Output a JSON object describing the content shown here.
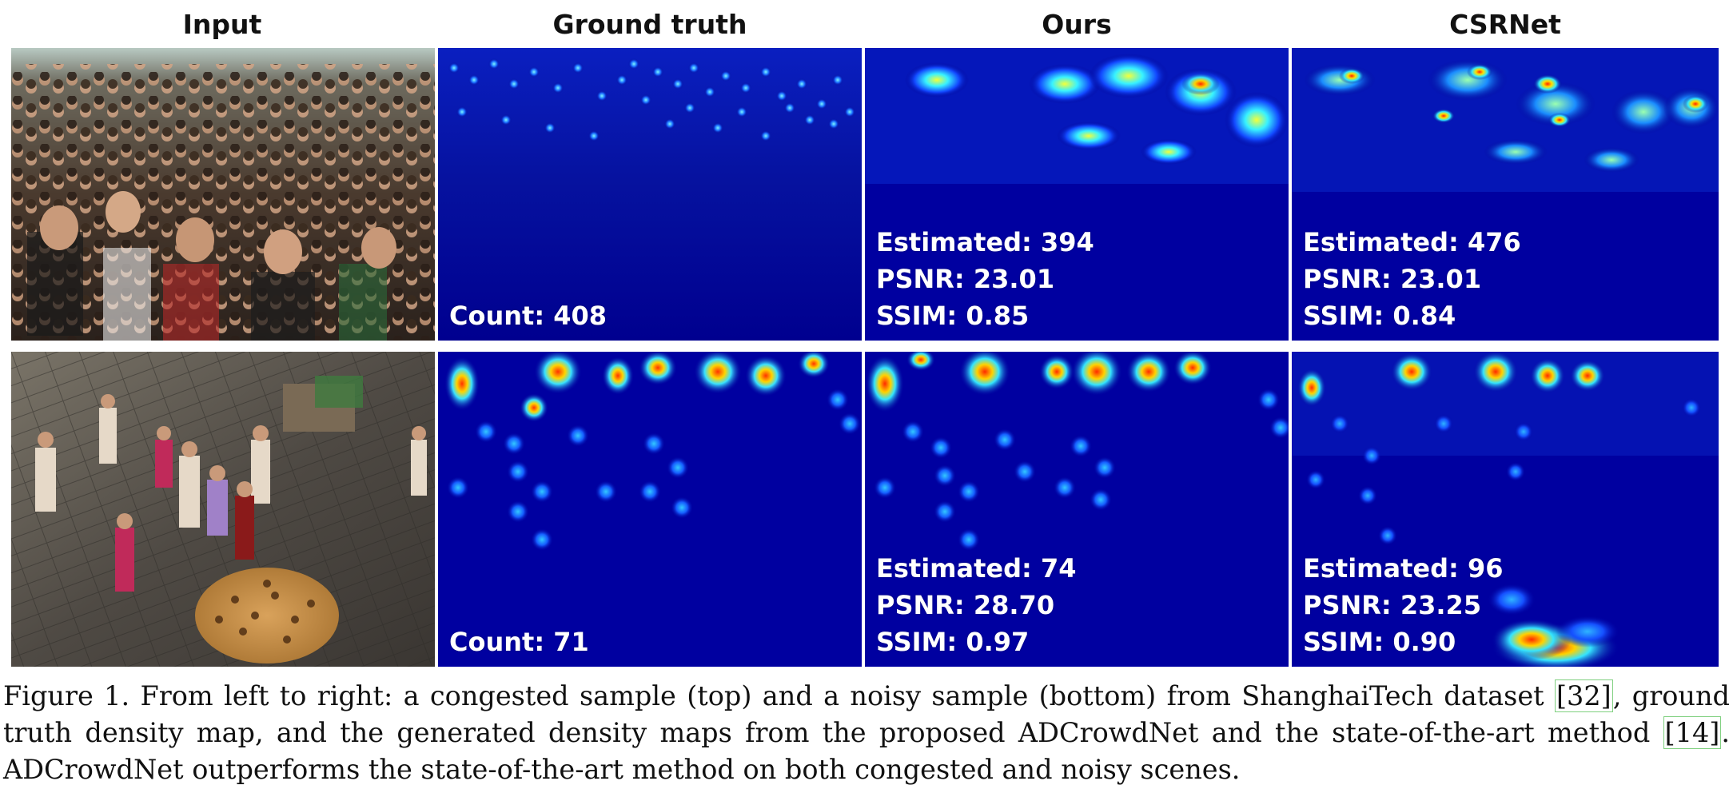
{
  "columns": {
    "input": "Input",
    "ground_truth": "Ground truth",
    "ours": "Ours",
    "csrnet": "CSRNet"
  },
  "rows": [
    {
      "ground_truth": {
        "count_line": "Count: 408"
      },
      "ours": {
        "estimated": "Estimated: 394",
        "psnr": "PSNR: 23.01",
        "ssim": "SSIM: 0.85"
      },
      "csrnet": {
        "estimated": "Estimated: 476",
        "psnr": "PSNR: 23.01",
        "ssim": "SSIM: 0.84"
      }
    },
    {
      "ground_truth": {
        "count_line": "Count: 71"
      },
      "ours": {
        "estimated": "Estimated: 74",
        "psnr": "PSNR: 28.70",
        "ssim": "SSIM: 0.97"
      },
      "csrnet": {
        "estimated": "Estimated: 96",
        "psnr": "PSNR: 23.25",
        "ssim": "SSIM: 0.90"
      }
    }
  ],
  "caption": {
    "part1": "Figure 1. From left to right: a congested sample (top) and a noisy sample (bottom) from ShanghaiTech dataset ",
    "cite1": "[32]",
    "part2": ", ground truth density map, and the generated density maps from the proposed ADCrowdNet and the state-of-the-art method ",
    "cite2": "[14]",
    "part3": ". ADCrowdNet outperforms the state-of-the-art method on both congested and noisy scenes."
  },
  "colors": {
    "density_background": "#00008f",
    "caption_link_border": "#7fd07f"
  }
}
